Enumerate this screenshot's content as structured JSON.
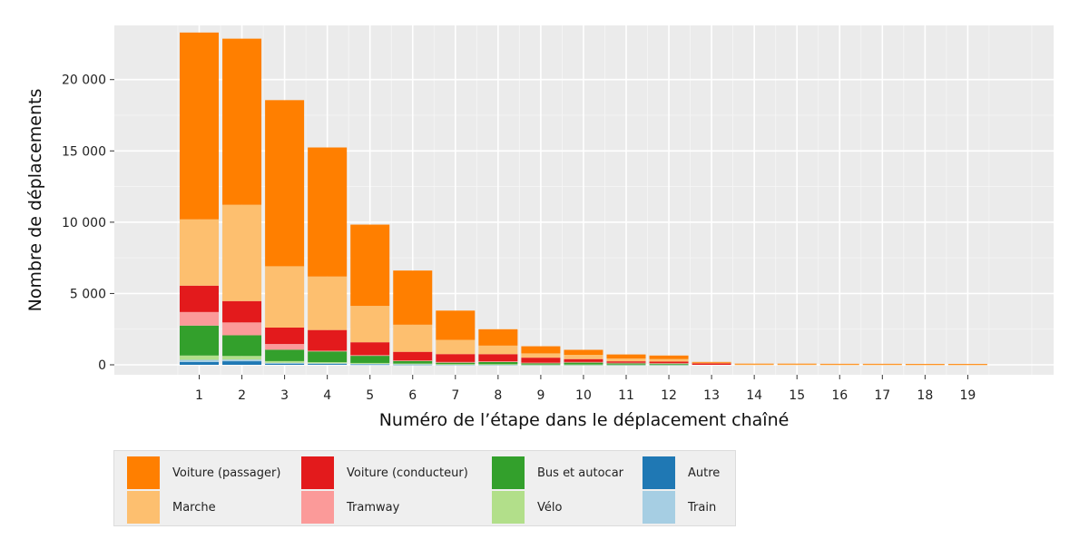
{
  "chart_data": {
    "type": "bar",
    "stacked": true,
    "xlabel": "Numéro de l’étape dans le déplacement chaîné",
    "ylabel": "Nombre de déplacements",
    "ylim": [
      -700,
      23800
    ],
    "yticks": [
      0,
      5000,
      10000,
      15000,
      20000
    ],
    "ytick_labels": [
      "0",
      "5 000",
      "10 000",
      "15 000",
      "20 000"
    ],
    "categories": [
      "1",
      "2",
      "3",
      "4",
      "5",
      "6",
      "7",
      "8",
      "9",
      "10",
      "11",
      "12",
      "13",
      "14",
      "15",
      "16",
      "17",
      "18",
      "19"
    ],
    "grid": true,
    "legend_position": "bottom",
    "series": [
      {
        "name": "Autre",
        "color": "#1f78b4",
        "values": [
          200,
          250,
          80,
          60,
          40,
          30,
          20,
          15,
          10,
          10,
          5,
          5,
          0,
          0,
          0,
          0,
          0,
          0,
          0
        ]
      },
      {
        "name": "Train",
        "color": "#a6cee3",
        "values": [
          150,
          120,
          60,
          50,
          30,
          20,
          10,
          10,
          5,
          5,
          5,
          5,
          0,
          0,
          0,
          0,
          0,
          0,
          0
        ]
      },
      {
        "name": "Vélo",
        "color": "#b2df8a",
        "values": [
          300,
          250,
          120,
          80,
          60,
          40,
          20,
          20,
          10,
          10,
          10,
          10,
          0,
          0,
          0,
          0,
          0,
          0,
          0
        ]
      },
      {
        "name": "Bus et autocar",
        "color": "#33a02c",
        "values": [
          2100,
          1450,
          800,
          750,
          500,
          200,
          100,
          150,
          100,
          150,
          100,
          80,
          0,
          0,
          0,
          0,
          0,
          0,
          0
        ]
      },
      {
        "name": "Tramway",
        "color": "#fb9a99",
        "values": [
          950,
          900,
          400,
          50,
          50,
          20,
          50,
          50,
          25,
          25,
          25,
          25,
          0,
          0,
          0,
          0,
          0,
          0,
          0
        ]
      },
      {
        "name": "Voiture (conducteur)",
        "color": "#e31a1c",
        "values": [
          1850,
          1500,
          1150,
          1450,
          900,
          600,
          550,
          500,
          350,
          200,
          100,
          100,
          120,
          0,
          0,
          0,
          0,
          0,
          0
        ]
      },
      {
        "name": "Marche",
        "color": "#fdbf6f",
        "values": [
          4650,
          6750,
          4300,
          3750,
          2550,
          1900,
          1000,
          600,
          300,
          300,
          200,
          175,
          30,
          30,
          30,
          25,
          25,
          20,
          20
        ]
      },
      {
        "name": "Voiture (passager)",
        "color": "#ff7f00",
        "values": [
          13100,
          11650,
          11650,
          9050,
          5700,
          3800,
          2050,
          1150,
          500,
          350,
          280,
          250,
          50,
          50,
          50,
          45,
          45,
          40,
          40
        ]
      }
    ]
  },
  "legend": {
    "items": [
      {
        "label": "Voiture (passager)",
        "color": "#ff7f00"
      },
      {
        "label": "Marche",
        "color": "#fdbf6f"
      },
      {
        "label": "Voiture (conducteur)",
        "color": "#e31a1c"
      },
      {
        "label": "Tramway",
        "color": "#fb9a99"
      },
      {
        "label": "Bus et autocar",
        "color": "#33a02c"
      },
      {
        "label": "Vélo",
        "color": "#b2df8a"
      },
      {
        "label": "Autre",
        "color": "#1f78b4"
      },
      {
        "label": "Train",
        "color": "#a6cee3"
      }
    ]
  }
}
